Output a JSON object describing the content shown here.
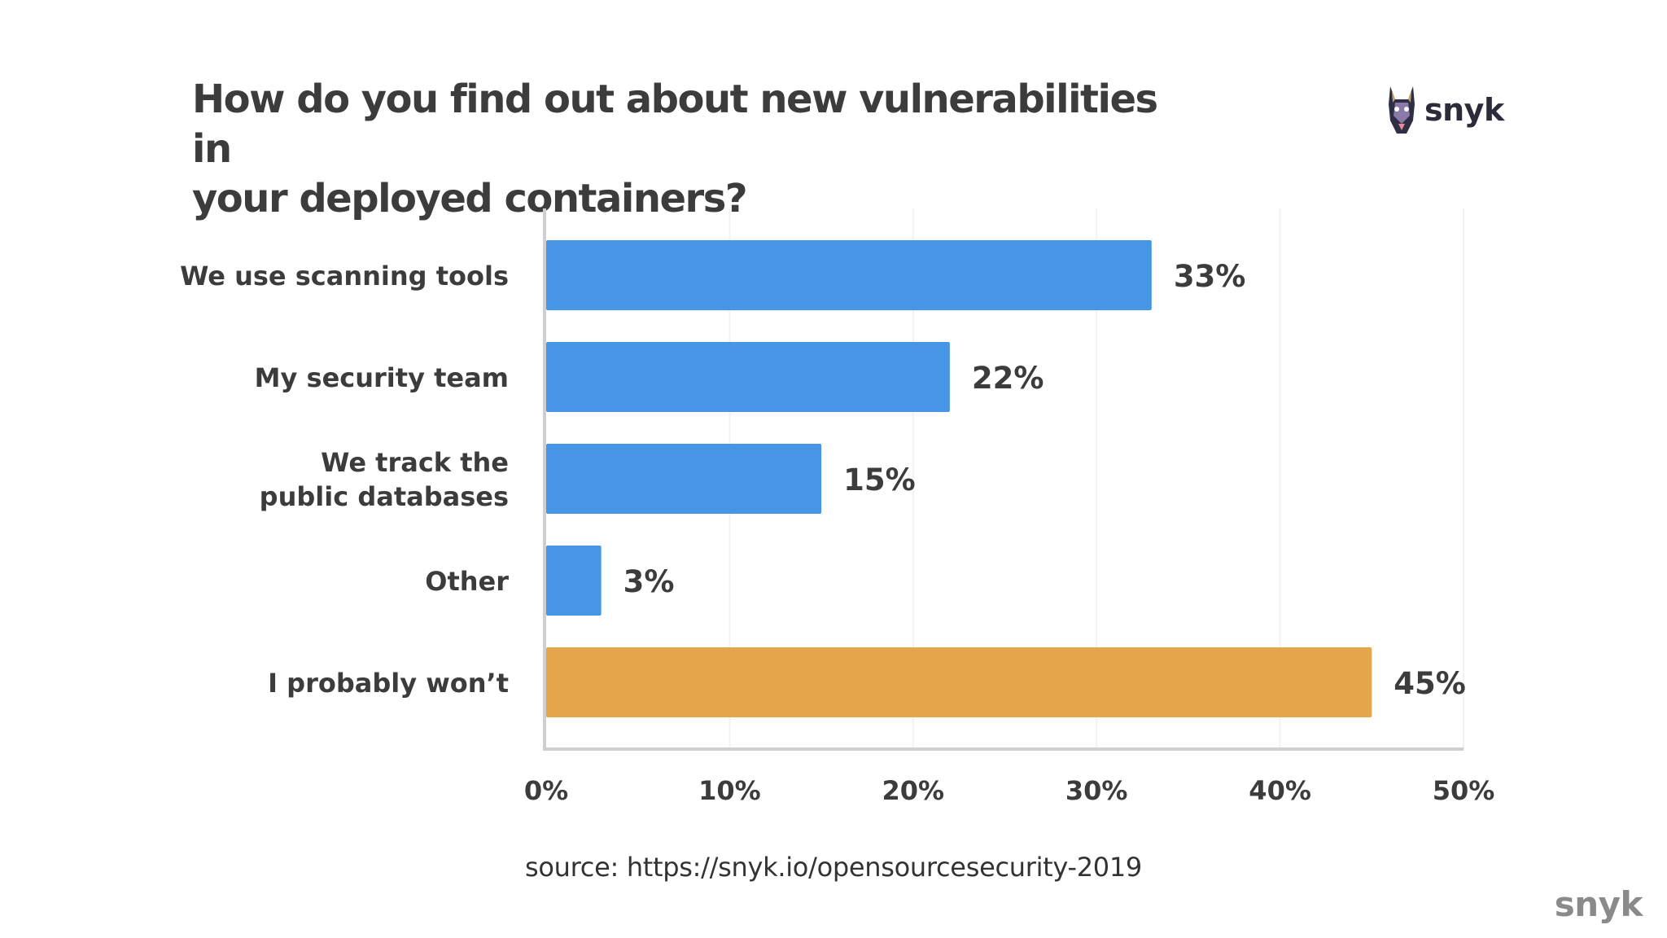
{
  "header": {
    "title_line1": "How do you find out about new vulnerabilities in",
    "title_line2": "your deployed containers?",
    "logo_text": "snyk"
  },
  "footer": {
    "source": "source: https://snyk.io/opensourcesecurity-2019",
    "logo_text": "snyk"
  },
  "colors": {
    "bar_primary": "#4796E5",
    "bar_highlight": "#E4A64B",
    "axis": "#cfcfcf",
    "grid": "#f2f2f2",
    "text": "#3c3c3c"
  },
  "icons": {
    "logo": "doberman-dog-icon"
  },
  "chart_data": {
    "type": "bar",
    "orientation": "horizontal",
    "title": "How do you find out about new vulnerabilities in your deployed containers?",
    "categories": [
      [
        "We use scanning tools"
      ],
      [
        "My security team"
      ],
      [
        "We track the",
        "public databases"
      ],
      [
        "Other"
      ],
      [
        "I probably won’t"
      ]
    ],
    "values": [
      33,
      22,
      15,
      3,
      45
    ],
    "value_labels": [
      "33%",
      "22%",
      "15%",
      "3%",
      "45%"
    ],
    "highlight_index": 4,
    "xlim": [
      0,
      50
    ],
    "ticks": [
      0,
      10,
      20,
      30,
      40,
      50
    ],
    "tick_labels": [
      "0%",
      "10%",
      "20%",
      "30%",
      "40%",
      "50%"
    ],
    "grid": true,
    "legend": "none",
    "xlabel": "",
    "ylabel": ""
  }
}
